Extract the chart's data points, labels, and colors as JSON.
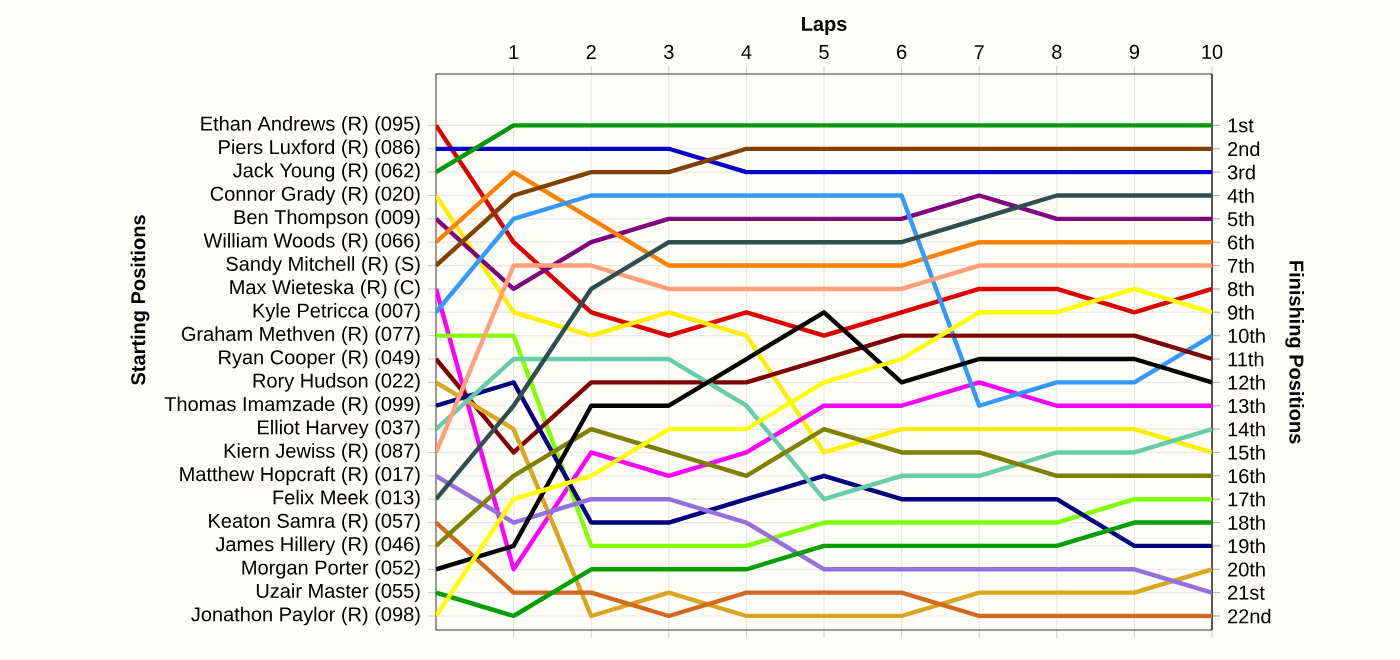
{
  "chart_data": {
    "type": "line",
    "xlabel": "Laps",
    "annotations": [
      "Starting Positions"
    ],
    "y2label": "Finishing Positions",
    "x": [
      0,
      1,
      2,
      3,
      4,
      5,
      6,
      7,
      8,
      9,
      10
    ],
    "xlim": [
      0,
      10
    ],
    "xticks": [
      1,
      2,
      3,
      4,
      5,
      6,
      7,
      8,
      9,
      10
    ],
    "y2lim": [
      22.6,
      -1.2
    ],
    "y2ticks": [
      {
        "value": 1,
        "label": "1st"
      },
      {
        "value": 2,
        "label": "2nd"
      },
      {
        "value": 3,
        "label": "3rd"
      },
      {
        "value": 4,
        "label": "4th"
      },
      {
        "value": 5,
        "label": "5th"
      },
      {
        "value": 6,
        "label": "6th"
      },
      {
        "value": 7,
        "label": "7th"
      },
      {
        "value": 8,
        "label": "8th"
      },
      {
        "value": 9,
        "label": "9th"
      },
      {
        "value": 10,
        "label": "10th"
      },
      {
        "value": 11,
        "label": "11th"
      },
      {
        "value": 12,
        "label": "12th"
      },
      {
        "value": 13,
        "label": "13th"
      },
      {
        "value": 14,
        "label": "14th"
      },
      {
        "value": 15,
        "label": "15th"
      },
      {
        "value": 16,
        "label": "16th"
      },
      {
        "value": 17,
        "label": "17th"
      },
      {
        "value": 18,
        "label": "18th"
      },
      {
        "value": 19,
        "label": "19th"
      },
      {
        "value": 20,
        "label": "20th"
      },
      {
        "value": 21,
        "label": "21st"
      },
      {
        "value": 22,
        "label": "22nd"
      }
    ],
    "grid": true,
    "marker": "none",
    "line_style": "solid",
    "series": [
      {
        "name": "Ethan Andrews (R) (095)",
        "color": "#dd0000",
        "values": [
          1,
          6,
          9,
          10,
          9,
          10,
          9,
          8,
          8,
          9,
          8
        ],
        "axis": "y2"
      },
      {
        "name": "Piers Luxford  (R) (086)",
        "color": "#0000cc",
        "values": [
          2,
          2,
          2,
          2,
          3,
          3,
          3,
          3,
          3,
          3,
          3
        ],
        "axis": "y2"
      },
      {
        "name": "Jack Young  (R) (062)",
        "color": "#009900",
        "values": [
          3,
          1,
          1,
          1,
          1,
          1,
          1,
          1,
          1,
          1,
          1
        ],
        "axis": "y2"
      },
      {
        "name": "Connor Grady (R) (020)",
        "color": "#ffee00",
        "values": [
          4,
          9,
          10,
          9,
          10,
          15,
          14,
          14,
          14,
          14,
          15
        ],
        "axis": "y2"
      },
      {
        "name": "Ben Thompson (009)",
        "color": "#800080",
        "values": [
          5,
          8,
          6,
          5,
          5,
          5,
          5,
          4,
          5,
          5,
          5
        ],
        "axis": "y2"
      },
      {
        "name": "William Woods (R) (066)",
        "color": "#ff8000",
        "values": [
          6,
          3,
          5,
          7,
          7,
          7,
          7,
          6,
          6,
          6,
          6
        ],
        "axis": "y2"
      },
      {
        "name": "Sandy Mitchell (R) (S)",
        "color": "#804000",
        "values": [
          7,
          4,
          3,
          3,
          2,
          2,
          2,
          2,
          2,
          2,
          2
        ],
        "axis": "y2"
      },
      {
        "name": "Max Wieteska (R) (C)",
        "color": "#ff00ff",
        "values": [
          8,
          20,
          15,
          16,
          15,
          13,
          13,
          12,
          13,
          13,
          13
        ],
        "axis": "y2"
      },
      {
        "name": "Kyle Petricca (007)",
        "color": "#3399ff",
        "values": [
          9,
          5,
          4,
          4,
          4,
          4,
          4,
          13,
          12,
          12,
          10
        ],
        "axis": "y2"
      },
      {
        "name": "Graham Methven  (R) (077)",
        "color": "#80ff00",
        "values": [
          10,
          10,
          19,
          19,
          19,
          18,
          18,
          18,
          18,
          17,
          17
        ],
        "axis": "y2"
      },
      {
        "name": "Ryan Cooper (R) (049)",
        "color": "#800000",
        "values": [
          11,
          15,
          12,
          12,
          12,
          11,
          10,
          10,
          10,
          10,
          11
        ],
        "axis": "y2"
      },
      {
        "name": "Rory Hudson (022)",
        "color": "#daa520",
        "values": [
          12,
          14,
          22,
          21,
          22,
          22,
          22,
          21,
          21,
          21,
          20
        ],
        "axis": "y2"
      },
      {
        "name": "Thomas Imamzade  (R) (099)",
        "color": "#000080",
        "values": [
          13,
          12,
          18,
          18,
          17,
          16,
          17,
          17,
          17,
          19,
          19
        ],
        "axis": "y2"
      },
      {
        "name": "Elliot Harvey (037)",
        "color": "#66cdaa",
        "values": [
          14,
          11,
          11,
          11,
          13,
          17,
          16,
          16,
          15,
          15,
          14
        ],
        "axis": "y2"
      },
      {
        "name": "Kiern Jewiss  (R) (087)",
        "color": "#ffa07a",
        "values": [
          15,
          7,
          7,
          8,
          8,
          8,
          8,
          7,
          7,
          7,
          7
        ],
        "axis": "y2"
      },
      {
        "name": "Matthew Hopcraft (R) (017)",
        "color": "#9370db",
        "values": [
          16,
          18,
          17,
          17,
          18,
          20,
          20,
          20,
          20,
          20,
          21
        ],
        "axis": "y2"
      },
      {
        "name": "Felix Meek (013)",
        "color": "#2f4f4f",
        "values": [
          17,
          13,
          8,
          6,
          6,
          6,
          6,
          5,
          4,
          4,
          4
        ],
        "axis": "y2"
      },
      {
        "name": "Keaton Samra (R) (057)",
        "color": "#d2691e",
        "values": [
          18,
          21,
          21,
          22,
          21,
          21,
          21,
          22,
          22,
          22,
          22
        ],
        "axis": "y2"
      },
      {
        "name": "James Hillery (R) (046)",
        "color": "#808000",
        "values": [
          19,
          16,
          14,
          15,
          16,
          14,
          15,
          15,
          16,
          16,
          16
        ],
        "axis": "y2"
      },
      {
        "name": "Morgan Porter (052)",
        "color": "#000000",
        "values": [
          20,
          19,
          13,
          13,
          11,
          9,
          12,
          11,
          11,
          11,
          12
        ],
        "axis": "y2"
      },
      {
        "name": "Uzair Master (055)",
        "color": "#00a000",
        "values": [
          21,
          22,
          20,
          20,
          20,
          19,
          19,
          19,
          19,
          18,
          18
        ],
        "axis": "y2"
      },
      {
        "name": "Jonathon Paylor (R) (098)",
        "color": "#ffff00",
        "values": [
          22,
          17,
          16,
          14,
          14,
          12,
          11,
          9,
          9,
          8,
          9
        ],
        "axis": "y2"
      }
    ]
  }
}
